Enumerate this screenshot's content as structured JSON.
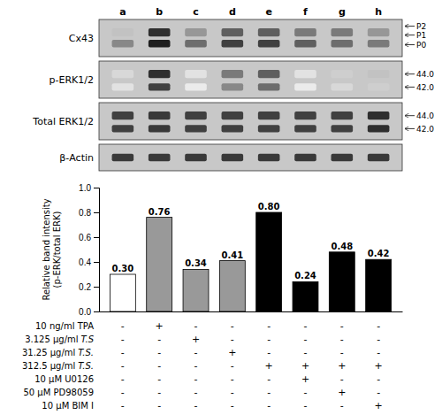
{
  "chart_data": [
    {
      "type": "blot",
      "columns": [
        "a",
        "b",
        "c",
        "d",
        "e",
        "f",
        "g",
        "h"
      ],
      "color": "#c8c8c8",
      "lanes": [
        {
          "name": "Cx43",
          "annotations": [
            "P2",
            "P1",
            "P0"
          ],
          "bands": [
            [
              0.35,
              0.55
            ],
            [
              0.85,
              0.9
            ],
            [
              0.5,
              0.65
            ],
            [
              0.7,
              0.8
            ],
            [
              0.7,
              0.8
            ],
            [
              0.6,
              0.7
            ],
            [
              0.6,
              0.65
            ],
            [
              0.5,
              0.6
            ]
          ]
        },
        {
          "name": "p-ERK1/2",
          "annotations": [
            "44.0",
            "42.0"
          ],
          "bands": [
            [
              0.25,
              0.2
            ],
            [
              0.85,
              0.8
            ],
            [
              0.2,
              0.15
            ],
            [
              0.6,
              0.55
            ],
            [
              0.7,
              0.65
            ],
            [
              0.2,
              0.15
            ],
            [
              0.3,
              0.25
            ],
            [
              0.35,
              0.3
            ]
          ]
        },
        {
          "name": "Total ERK1/2",
          "annotations": [
            "44.0",
            "42.0"
          ],
          "bands": [
            0.8,
            0.82,
            0.8,
            0.8,
            0.8,
            0.8,
            0.8,
            0.85
          ]
        },
        {
          "name": "β-Actin",
          "annotations": [],
          "bands": [
            0.82,
            0.82,
            0.82,
            0.82,
            0.82,
            0.82,
            0.82,
            0.82
          ]
        }
      ]
    },
    {
      "type": "bar",
      "categories": [
        null,
        null,
        null,
        null,
        null,
        null,
        null,
        null
      ],
      "values": [
        0.3,
        0.76,
        0.34,
        0.41,
        0.8,
        0.24,
        0.48,
        0.42
      ],
      "value_labels": [
        "0.30",
        "0.76",
        "0.34",
        "0.41",
        "0.80",
        "0.24",
        "0.48",
        "0.42"
      ],
      "data_labels": true,
      "colors": [
        "white",
        "#999999",
        "#999999",
        "#999999",
        "black",
        "black",
        "black",
        "black"
      ],
      "ylabel": "Relative band intensity\n(p-ERK/total ERK)",
      "ylim": [
        0.0,
        1.0
      ],
      "yticks": [
        {
          "value": 0.0,
          "label": "0.0"
        },
        0.2,
        0.4,
        0.6,
        0.8,
        {
          "value": 1.0,
          "label": "1.0"
        }
      ]
    },
    {
      "type": "table",
      "rows": [
        {
          "label": "10 ng/ml TPA",
          "values": [
            "-",
            "+",
            "-",
            "-",
            "-",
            "-",
            "-",
            "-"
          ]
        },
        {
          "label": "3.125 μg/ml",
          "label_italic": "T.S",
          "values": [
            "-",
            "-",
            "+",
            "-",
            "-",
            "-",
            "-",
            "-"
          ]
        },
        {
          "label": "31.25 μg/ml",
          "label_italic": "T.S.",
          "values": [
            "-",
            "-",
            "-",
            "+",
            "-",
            "-",
            "-",
            "-"
          ]
        },
        {
          "label": "312.5 μg/ml",
          "label_italic": "T.S.",
          "values": [
            "-",
            "-",
            "-",
            "-",
            "+",
            "+",
            "+",
            "+"
          ]
        },
        {
          "label": "10 μM U0126",
          "values": [
            "-",
            "-",
            "-",
            "-",
            "-",
            "+",
            "-",
            "-"
          ]
        },
        {
          "label": "50 μM PD98059",
          "values": [
            "-",
            "-",
            "-",
            "-",
            "-",
            "-",
            "+",
            "-"
          ]
        },
        {
          "label": "10 μM BIM I",
          "values": [
            "-",
            "-",
            "-",
            "-",
            "-",
            "-",
            "-",
            "+"
          ]
        }
      ]
    }
  ]
}
